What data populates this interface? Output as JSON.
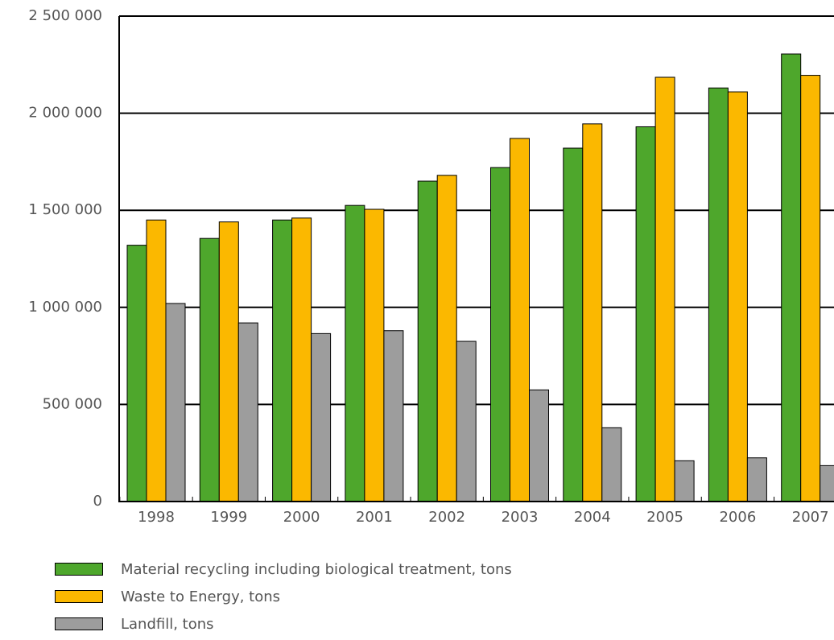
{
  "chart_data": {
    "type": "bar",
    "categories": [
      "1998",
      "1999",
      "2000",
      "2001",
      "2002",
      "2003",
      "2004",
      "2005",
      "2006",
      "2007"
    ],
    "series": [
      {
        "name": "Material recycling including biological treatment, tons",
        "color": "#4ea72c",
        "values": [
          1320000,
          1355000,
          1450000,
          1525000,
          1650000,
          1720000,
          1820000,
          1930000,
          2130000,
          2305000
        ]
      },
      {
        "name": "Waste to Energy, tons",
        "color": "#fbb800",
        "values": [
          1450000,
          1440000,
          1460000,
          1505000,
          1680000,
          1870000,
          1945000,
          2185000,
          2110000,
          2195000
        ]
      },
      {
        "name": "Landfill, tons",
        "color": "#9d9d9d",
        "values": [
          1020000,
          920000,
          865000,
          880000,
          825000,
          575000,
          380000,
          210000,
          225000,
          185000
        ]
      }
    ],
    "yticks": [
      "0",
      "500 000",
      "1 000 000",
      "1 500 000",
      "2 000 000",
      "2 500 000"
    ],
    "ylim": [
      0,
      2500000
    ],
    "grid": true,
    "legend_position": "bottom-left"
  }
}
